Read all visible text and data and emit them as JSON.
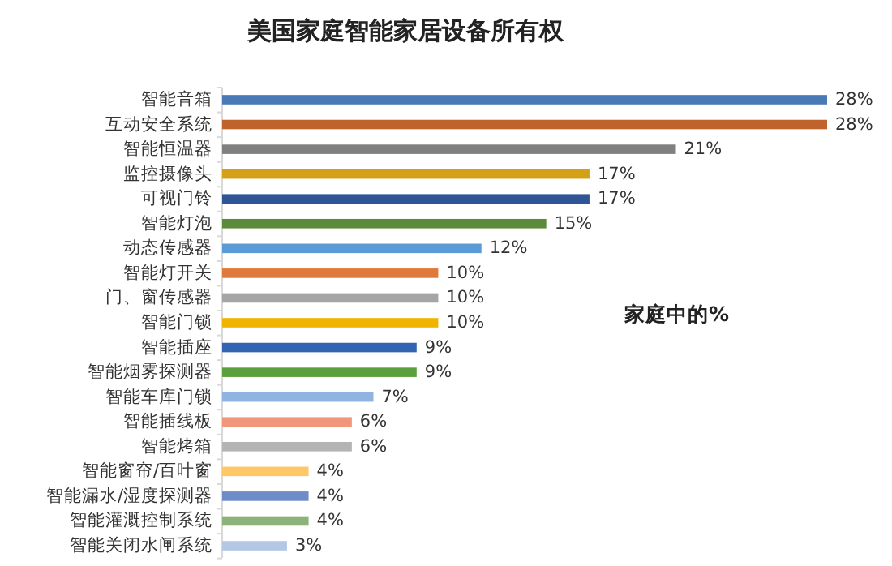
{
  "chart_data": {
    "type": "bar",
    "orientation": "horizontal",
    "title": "美国家庭智能家居设备所有权",
    "categories": [
      "智能音箱",
      "互动安全系统",
      "智能恒温器",
      "监控摄像头",
      "可视门铃",
      "智能灯泡",
      "动态传感器",
      "智能灯开关",
      "门、窗传感器",
      "智能门锁",
      "智能插座",
      "智能烟雾探测器",
      "智能车库门锁",
      "智能插线板",
      "智能烤箱",
      "智能窗帘/百叶窗",
      "智能漏水/湿度探测器",
      "智能灌溉控制系统",
      "智能关闭水闸系统"
    ],
    "values": [
      28,
      28,
      21,
      17,
      17,
      15,
      12,
      10,
      10,
      10,
      9,
      9,
      7,
      6,
      6,
      4,
      4,
      4,
      3
    ],
    "colors": [
      "#4a7ab5",
      "#c0622b",
      "#808080",
      "#d4a017",
      "#2f5597",
      "#5a8a3a",
      "#5b9bd5",
      "#e07a3a",
      "#a5a5a5",
      "#f0b400",
      "#3264b4",
      "#5aa03c",
      "#8fb4e0",
      "#f0967a",
      "#b4b4b4",
      "#ffc866",
      "#6e8cc8",
      "#8cb478",
      "#b4c8e6"
    ],
    "value_labels": [
      "28%",
      "28%",
      "21%",
      "17%",
      "17%",
      "15%",
      "12%",
      "10%",
      "10%",
      "10%",
      "9%",
      "9%",
      "7%",
      "6%",
      "6%",
      "4%",
      "4%",
      "4%",
      "3%"
    ],
    "annotations": [
      "家庭中的%"
    ]
  }
}
